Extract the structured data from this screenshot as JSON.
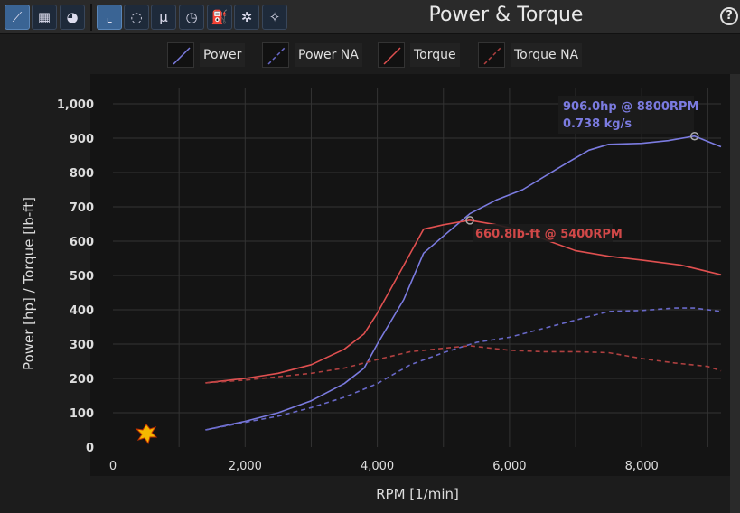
{
  "toolbar": {
    "title": "Power & Torque",
    "help": "?",
    "buttons": [
      {
        "icon": "power-graph-icon",
        "glyph": "⟋",
        "active": true
      },
      {
        "icon": "multi-graph-icon",
        "glyph": "▦",
        "active": false
      },
      {
        "icon": "turbo-icon",
        "glyph": "◕",
        "active": false
      },
      {
        "icon": "axis-chart-icon",
        "glyph": "⌞",
        "active": true
      },
      {
        "icon": "speedometer-icon",
        "glyph": "◌",
        "active": false
      },
      {
        "icon": "friction-mu-icon",
        "glyph": "μ",
        "active": false
      },
      {
        "icon": "stopwatch-icon",
        "glyph": "◷",
        "active": false
      },
      {
        "icon": "fuel-icon",
        "glyph": "⛽",
        "active": false
      },
      {
        "icon": "bug-icon",
        "glyph": "✲",
        "active": false
      },
      {
        "icon": "spray-icon",
        "glyph": "✧",
        "active": false
      }
    ]
  },
  "chart_data": {
    "type": "line",
    "xlabel": "RPM [1/min]",
    "ylabel": "Power [hp] / Torque [lb-ft]",
    "xlim": [
      0,
      9200
    ],
    "ylim": [
      0,
      1000
    ],
    "xticks": [
      0,
      2000,
      4000,
      6000,
      8000
    ],
    "xtick_labels": [
      "0",
      "2,000",
      "4,000",
      "6,000",
      "8,000"
    ],
    "yticks": [
      0,
      100,
      200,
      300,
      400,
      500,
      600,
      700,
      800,
      900,
      1000
    ],
    "ytick_labels": [
      "0",
      "100",
      "200",
      "300",
      "400",
      "500",
      "600",
      "700",
      "800",
      "900",
      "1,000"
    ],
    "grid": true,
    "legend_placement": "top",
    "series": [
      {
        "name": "Power",
        "color": "#7b7be0",
        "dash": false,
        "x": [
          1400,
          2000,
          2500,
          3000,
          3500,
          3800,
          4000,
          4400,
          4700,
          5000,
          5400,
          5800,
          6200,
          6800,
          7200,
          7500,
          8000,
          8400,
          8800,
          9200
        ],
        "y": [
          50,
          75,
          100,
          135,
          185,
          230,
          300,
          430,
          565,
          615,
          680,
          720,
          750,
          820,
          865,
          882,
          885,
          893,
          906,
          875
        ]
      },
      {
        "name": "Power NA",
        "color": "#6868c8",
        "dash": true,
        "x": [
          1400,
          2000,
          2500,
          3000,
          3500,
          4000,
          4500,
          5000,
          5500,
          6000,
          6500,
          7000,
          7500,
          8000,
          8500,
          8800,
          9200
        ],
        "y": [
          50,
          72,
          90,
          115,
          145,
          185,
          240,
          275,
          305,
          320,
          345,
          370,
          395,
          398,
          405,
          405,
          395
        ]
      },
      {
        "name": "Torque",
        "color": "#e05050",
        "dash": false,
        "x": [
          1400,
          2000,
          2500,
          3000,
          3500,
          3800,
          4000,
          4400,
          4700,
          5000,
          5400,
          5800,
          6200,
          6600,
          7000,
          7500,
          8000,
          8600,
          9200
        ],
        "y": [
          187,
          200,
          215,
          240,
          285,
          330,
          390,
          530,
          635,
          648,
          661,
          648,
          630,
          600,
          572,
          556,
          545,
          530,
          502
        ]
      },
      {
        "name": "Torque NA",
        "color": "#b04040",
        "dash": true,
        "x": [
          1400,
          2000,
          2500,
          3000,
          3500,
          4000,
          4500,
          5000,
          5400,
          6000,
          6500,
          7000,
          7500,
          8000,
          8500,
          9000,
          9200
        ],
        "y": [
          187,
          195,
          205,
          215,
          230,
          255,
          278,
          288,
          295,
          282,
          278,
          278,
          275,
          258,
          245,
          235,
          222
        ]
      }
    ],
    "annotations": [
      {
        "text": "906.0hp @ 8800RPM",
        "text2": "0.738 kg/s",
        "x": 8800,
        "y": 906,
        "color": "#7b7be0"
      },
      {
        "text": "660.8lb-ft @ 5400RPM",
        "x": 5400,
        "y": 660.8,
        "color": "#d04848"
      }
    ]
  }
}
